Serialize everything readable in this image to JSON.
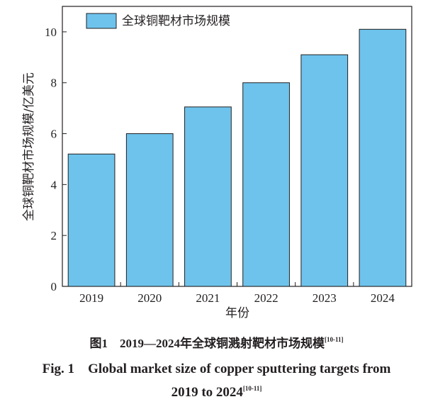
{
  "chart_data": {
    "type": "bar",
    "categories": [
      "2019",
      "2020",
      "2021",
      "2022",
      "2023",
      "2024"
    ],
    "series": [
      {
        "name": "全球铜靶材市场规模",
        "values": [
          5.2,
          6.0,
          7.05,
          8.0,
          9.1,
          10.1
        ]
      }
    ],
    "xlabel": "年份",
    "ylabel": "全球铜靶材市场规模/亿美元",
    "ylim": [
      0,
      11
    ],
    "yticks": [
      "0",
      "2",
      "4",
      "6",
      "8",
      "10"
    ],
    "grid": false,
    "legend": "top-left",
    "bar_color": "#6ec3ec",
    "edge_color": "#231f20"
  },
  "caption": {
    "cn_label": "图1",
    "cn_text": "2019—2024年全球铜溅射靶材市场规模",
    "cn_ref": "[10-11]",
    "en_label": "Fig. 1",
    "en_text_line1": "Global market size of copper sputtering targets from",
    "en_text_line2": "2019 to 2024",
    "en_ref": "[10-11]"
  }
}
